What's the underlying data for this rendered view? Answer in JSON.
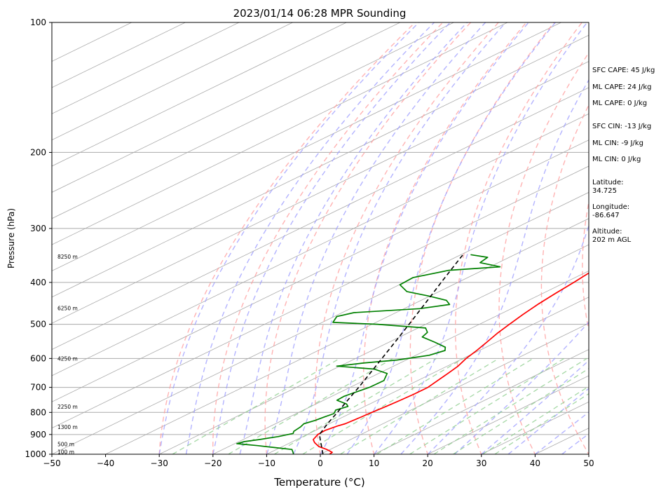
{
  "chart_data": {
    "type": "line",
    "subtype": "skew-t log-p sounding",
    "title": "2023/01/14 06:28 MPR Sounding",
    "xlabel": "Temperature (°C)",
    "ylabel": "Pressure (hPa)",
    "xlim": [
      -50,
      50
    ],
    "ylim": [
      1000,
      100
    ],
    "y_scale": "log",
    "x_ticks": [
      -50,
      -40,
      -30,
      -20,
      -10,
      0,
      10,
      20,
      30,
      40,
      50
    ],
    "y_ticks": [
      100,
      200,
      300,
      400,
      500,
      600,
      700,
      800,
      900,
      1000
    ],
    "grid": true,
    "legend": "none",
    "colors": {
      "temperature": "#ff0000",
      "dewpoint": "#008000",
      "parcel": "#000000",
      "dry_adiabats": "#ff9a9a",
      "moist_adiabats": "#9a9aff",
      "mixing_ratio": "#8fce8f",
      "isotherms": "#999999"
    },
    "series": [
      {
        "id": "temperature",
        "style": "solid",
        "points": [
          [
            1000,
            1.7
          ],
          [
            990,
            1.5
          ],
          [
            975,
            -0.6
          ],
          [
            960,
            -3.2
          ],
          [
            940,
            -5.5
          ],
          [
            925,
            -6.9
          ],
          [
            900,
            -8.0
          ],
          [
            880,
            -8.2
          ],
          [
            860,
            -7.6
          ],
          [
            850,
            -7.0
          ],
          [
            820,
            -6.6
          ],
          [
            800,
            -6.4
          ],
          [
            775,
            -6.0
          ],
          [
            750,
            -5.7
          ],
          [
            725,
            -5.5
          ],
          [
            700,
            -5.5
          ],
          [
            675,
            -6.3
          ],
          [
            650,
            -7.1
          ],
          [
            625,
            -8.0
          ],
          [
            600,
            -9.4
          ],
          [
            575,
            -10.5
          ],
          [
            550,
            -11.8
          ],
          [
            525,
            -13.2
          ],
          [
            500,
            -14.4
          ],
          [
            475,
            -15.6
          ],
          [
            450,
            -16.7
          ],
          [
            425,
            -17.6
          ],
          [
            400,
            -18.4
          ],
          [
            375,
            -19.4
          ],
          [
            350,
            -20.3
          ],
          [
            325,
            -21.1
          ],
          [
            300,
            -21.8
          ],
          [
            280,
            -22.1
          ],
          [
            265,
            -21.7
          ],
          [
            255,
            -21.0
          ],
          [
            250,
            -20.8
          ]
        ]
      },
      {
        "id": "dewpoint",
        "style": "solid",
        "points": [
          [
            1000,
            -5.0
          ],
          [
            990,
            -5.8
          ],
          [
            975,
            -7.1
          ],
          [
            965,
            -11.0
          ],
          [
            955,
            -15.0
          ],
          [
            945,
            -19.6
          ],
          [
            935,
            -19.0
          ],
          [
            925,
            -17.0
          ],
          [
            910,
            -14.6
          ],
          [
            895,
            -13.0
          ],
          [
            885,
            -13.7
          ],
          [
            865,
            -14.1
          ],
          [
            850,
            -14.7
          ],
          [
            835,
            -13.9
          ],
          [
            820,
            -13.5
          ],
          [
            805,
            -13.0
          ],
          [
            790,
            -14.0
          ],
          [
            775,
            -13.1
          ],
          [
            765,
            -14.3
          ],
          [
            750,
            -17.5
          ],
          [
            735,
            -17.7
          ],
          [
            725,
            -17.4
          ],
          [
            700,
            -16.4
          ],
          [
            675,
            -16.3
          ],
          [
            650,
            -18.4
          ],
          [
            635,
            -22.5
          ],
          [
            625,
            -30.6
          ],
          [
            615,
            -26.8
          ],
          [
            605,
            -21.7
          ],
          [
            590,
            -17.5
          ],
          [
            575,
            -16.4
          ],
          [
            565,
            -17.6
          ],
          [
            550,
            -21.5
          ],
          [
            535,
            -25.8
          ],
          [
            522,
            -26.6
          ],
          [
            510,
            -28.6
          ],
          [
            500,
            -39.0
          ],
          [
            495,
            -48.0
          ],
          [
            480,
            -49.5
          ],
          [
            470,
            -47.8
          ],
          [
            460,
            -37.1
          ],
          [
            450,
            -33.1
          ],
          [
            440,
            -35.3
          ],
          [
            430,
            -40.3
          ],
          [
            420,
            -46.0
          ],
          [
            405,
            -49.9
          ],
          [
            390,
            -50.2
          ],
          [
            375,
            -46.3
          ],
          [
            368,
            -38.1
          ],
          [
            360,
            -43.4
          ],
          [
            350,
            -44.0
          ],
          [
            345,
            -48.2
          ]
        ]
      },
      {
        "id": "parcel",
        "style": "dashed",
        "points": [
          [
            1000,
            0.5
          ],
          [
            975,
            -1.5
          ],
          [
            950,
            -3.5
          ],
          [
            925,
            -5.6
          ],
          [
            900,
            -7.7
          ],
          [
            850,
            -10.3
          ],
          [
            800,
            -12.8
          ],
          [
            750,
            -15.5
          ],
          [
            700,
            -18.4
          ],
          [
            650,
            -21.6
          ],
          [
            600,
            -25.1
          ],
          [
            550,
            -28.9
          ],
          [
            500,
            -33.1
          ],
          [
            450,
            -37.8
          ],
          [
            400,
            -43.1
          ],
          [
            350,
            -49.0
          ],
          [
            345,
            -49.6
          ]
        ]
      }
    ],
    "height_labels": [
      {
        "text": "100 m",
        "p": 991
      },
      {
        "text": "500 m",
        "p": 950
      },
      {
        "text": "1300 m",
        "p": 867
      },
      {
        "text": "2250 m",
        "p": 778
      },
      {
        "text": "4250 m",
        "p": 603
      },
      {
        "text": "6250 m",
        "p": 460
      },
      {
        "text": "8250 m",
        "p": 350
      }
    ],
    "stats": {
      "sfc_cape": "SFC CAPE: 45 J/kg",
      "ml_cape_1": "ML CAPE: 24 J/kg",
      "ml_cape_2": "ML CAPE: 0 J/kg",
      "sfc_cin": "SFC CIN: -13 J/kg",
      "ml_cin_1": "ML CIN: -9 J/kg",
      "ml_cin_2": "ML CIN: 0 J/kg",
      "latitude_label": "Latitude:",
      "latitude_value": "34.725",
      "longitude_label": "Longitude:",
      "longitude_value": "-86.647",
      "altitude_label": "Altitude:",
      "altitude_value": "202 m AGL"
    }
  }
}
